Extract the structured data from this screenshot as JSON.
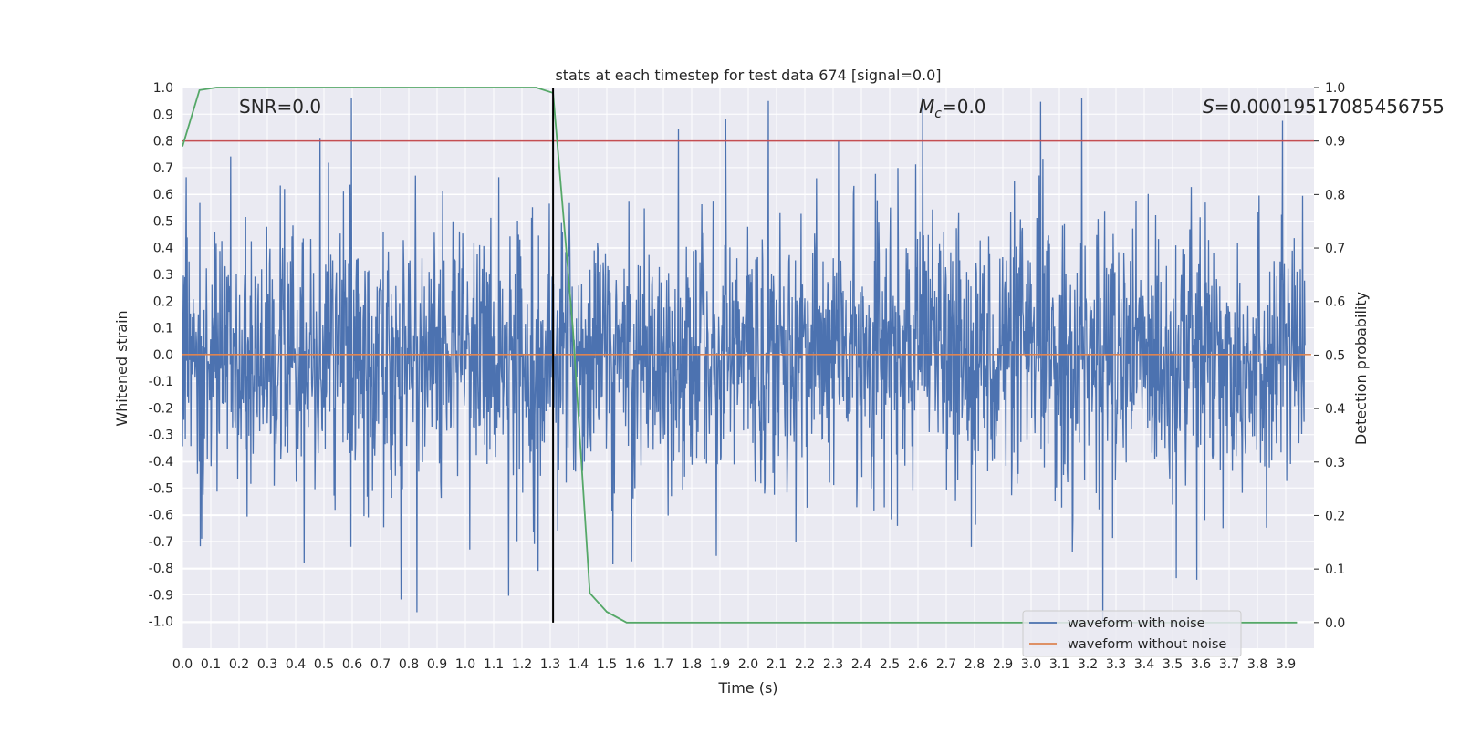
{
  "chart_data": {
    "type": "line",
    "title": "stats at each timestep for test data 674 [signal=0.0]",
    "xlabel": "Time (s)",
    "ylabel": "Whitened strain",
    "y2label": "Detection probability",
    "xlim": [
      0.0,
      4.0
    ],
    "ylim": [
      -1.1,
      1.0
    ],
    "y2lim": [
      -0.048,
      1.0
    ],
    "x_ticks": [
      "0.0",
      "0.1",
      "0.2",
      "0.3",
      "0.4",
      "0.5",
      "0.6",
      "0.7",
      "0.8",
      "0.9",
      "1.0",
      "1.1",
      "1.2",
      "1.3",
      "1.4",
      "1.5",
      "1.6",
      "1.7",
      "1.8",
      "1.9",
      "2.0",
      "2.1",
      "2.2",
      "2.3",
      "2.4",
      "2.5",
      "2.6",
      "2.7",
      "2.8",
      "2.9",
      "3.0",
      "3.1",
      "3.2",
      "3.3",
      "3.4",
      "3.5",
      "3.6",
      "3.7",
      "3.8",
      "3.9"
    ],
    "y_ticks": [
      "1.0",
      "0.9",
      "0.8",
      "0.7",
      "0.6",
      "0.5",
      "0.4",
      "0.3",
      "0.2",
      "0.1",
      "0.0",
      "-0.1",
      "-0.2",
      "-0.3",
      "-0.4",
      "-0.5",
      "-0.6",
      "-0.7",
      "-0.8",
      "-0.9",
      "-1.0"
    ],
    "y2_ticks": [
      "1.0",
      "0.9",
      "0.8",
      "0.7",
      "0.6",
      "0.5",
      "0.4",
      "0.3",
      "0.2",
      "0.1",
      "0.0"
    ],
    "annotations": {
      "snr": "SNR=0.0",
      "mc_symbol": "M",
      "mc_sub": "c",
      "mc_value": "=0.0",
      "s_symbol": "S",
      "s_value": "=0.00019517085456755"
    },
    "legend": {
      "position": "lower-right",
      "entries": [
        {
          "label": "waveform with noise",
          "color": "#4c72b0"
        },
        {
          "label": "waveform without noise",
          "color": "#dd8452"
        }
      ]
    },
    "series": [
      {
        "name": "waveform with noise",
        "color": "#4c72b0",
        "description": "whitened noise fluctuating roughly between -1.0 and 1.0"
      },
      {
        "name": "waveform without noise",
        "color": "#dd8452",
        "y": 0.0
      },
      {
        "name": "detection probability",
        "color": "#55a868",
        "x": [
          0.0,
          0.06,
          0.12,
          0.2,
          0.5,
          1.0,
          1.25,
          1.31,
          1.38,
          1.44,
          1.5,
          1.57,
          1.8,
          2.5,
          3.0,
          3.5,
          3.94
        ],
        "y": [
          0.89,
          0.995,
          1.0,
          1.0,
          1.0,
          1.0,
          1.0,
          0.99,
          0.55,
          0.055,
          0.02,
          0.0,
          0.0,
          0.0,
          0.0,
          0.0,
          0.0
        ]
      }
    ],
    "threshold": {
      "y2": 0.9,
      "color": "#c44e52"
    },
    "marker": {
      "x": 1.31,
      "color": "#000000"
    }
  }
}
